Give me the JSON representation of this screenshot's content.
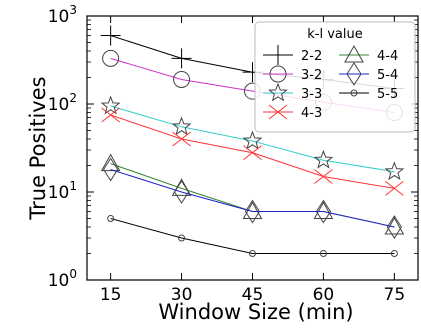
{
  "chart_data": {
    "type": "line",
    "xlabel": "Window Size (min)",
    "ylabel": "True Positives",
    "yscale": "log",
    "ylim": [
      1,
      1000
    ],
    "xlim": [
      10,
      80
    ],
    "x": [
      15,
      30,
      45,
      60,
      75
    ],
    "x_tick_labels": [
      "15",
      "30",
      "45",
      "60",
      "75"
    ],
    "y_ticks": [
      {
        "value": 1,
        "base": "10",
        "exp": "0"
      },
      {
        "value": 10,
        "base": "10",
        "exp": "1"
      },
      {
        "value": 100,
        "base": "10",
        "exp": "2"
      },
      {
        "value": 1000,
        "base": "10",
        "exp": "3"
      }
    ],
    "grid": false,
    "legend": {
      "title": "k-l value",
      "position": "top-right",
      "columns": 2
    },
    "series": [
      {
        "name": "2-2",
        "color": "#000000",
        "marker": "plus",
        "values": [
          600,
          330,
          230,
          190,
          150
        ]
      },
      {
        "name": "3-2",
        "color": "#cc33cc",
        "marker": "circle",
        "values": [
          330,
          190,
          140,
          105,
          80
        ]
      },
      {
        "name": "3-3",
        "color": "#33cccc",
        "marker": "star",
        "values": [
          95,
          55,
          38,
          23,
          17
        ]
      },
      {
        "name": "4-3",
        "color": "#ff3333",
        "marker": "x",
        "values": [
          75,
          40,
          28,
          15,
          11
        ]
      },
      {
        "name": "4-4",
        "color": "#338833",
        "marker": "triangle",
        "values": [
          21,
          11,
          6,
          6,
          4
        ]
      },
      {
        "name": "5-4",
        "color": "#2222cc",
        "marker": "diamond",
        "values": [
          18,
          10,
          6,
          6,
          4
        ]
      },
      {
        "name": "5-5",
        "color": "#000000",
        "marker": "dot",
        "values": [
          5,
          3,
          2,
          2,
          2
        ]
      }
    ]
  }
}
